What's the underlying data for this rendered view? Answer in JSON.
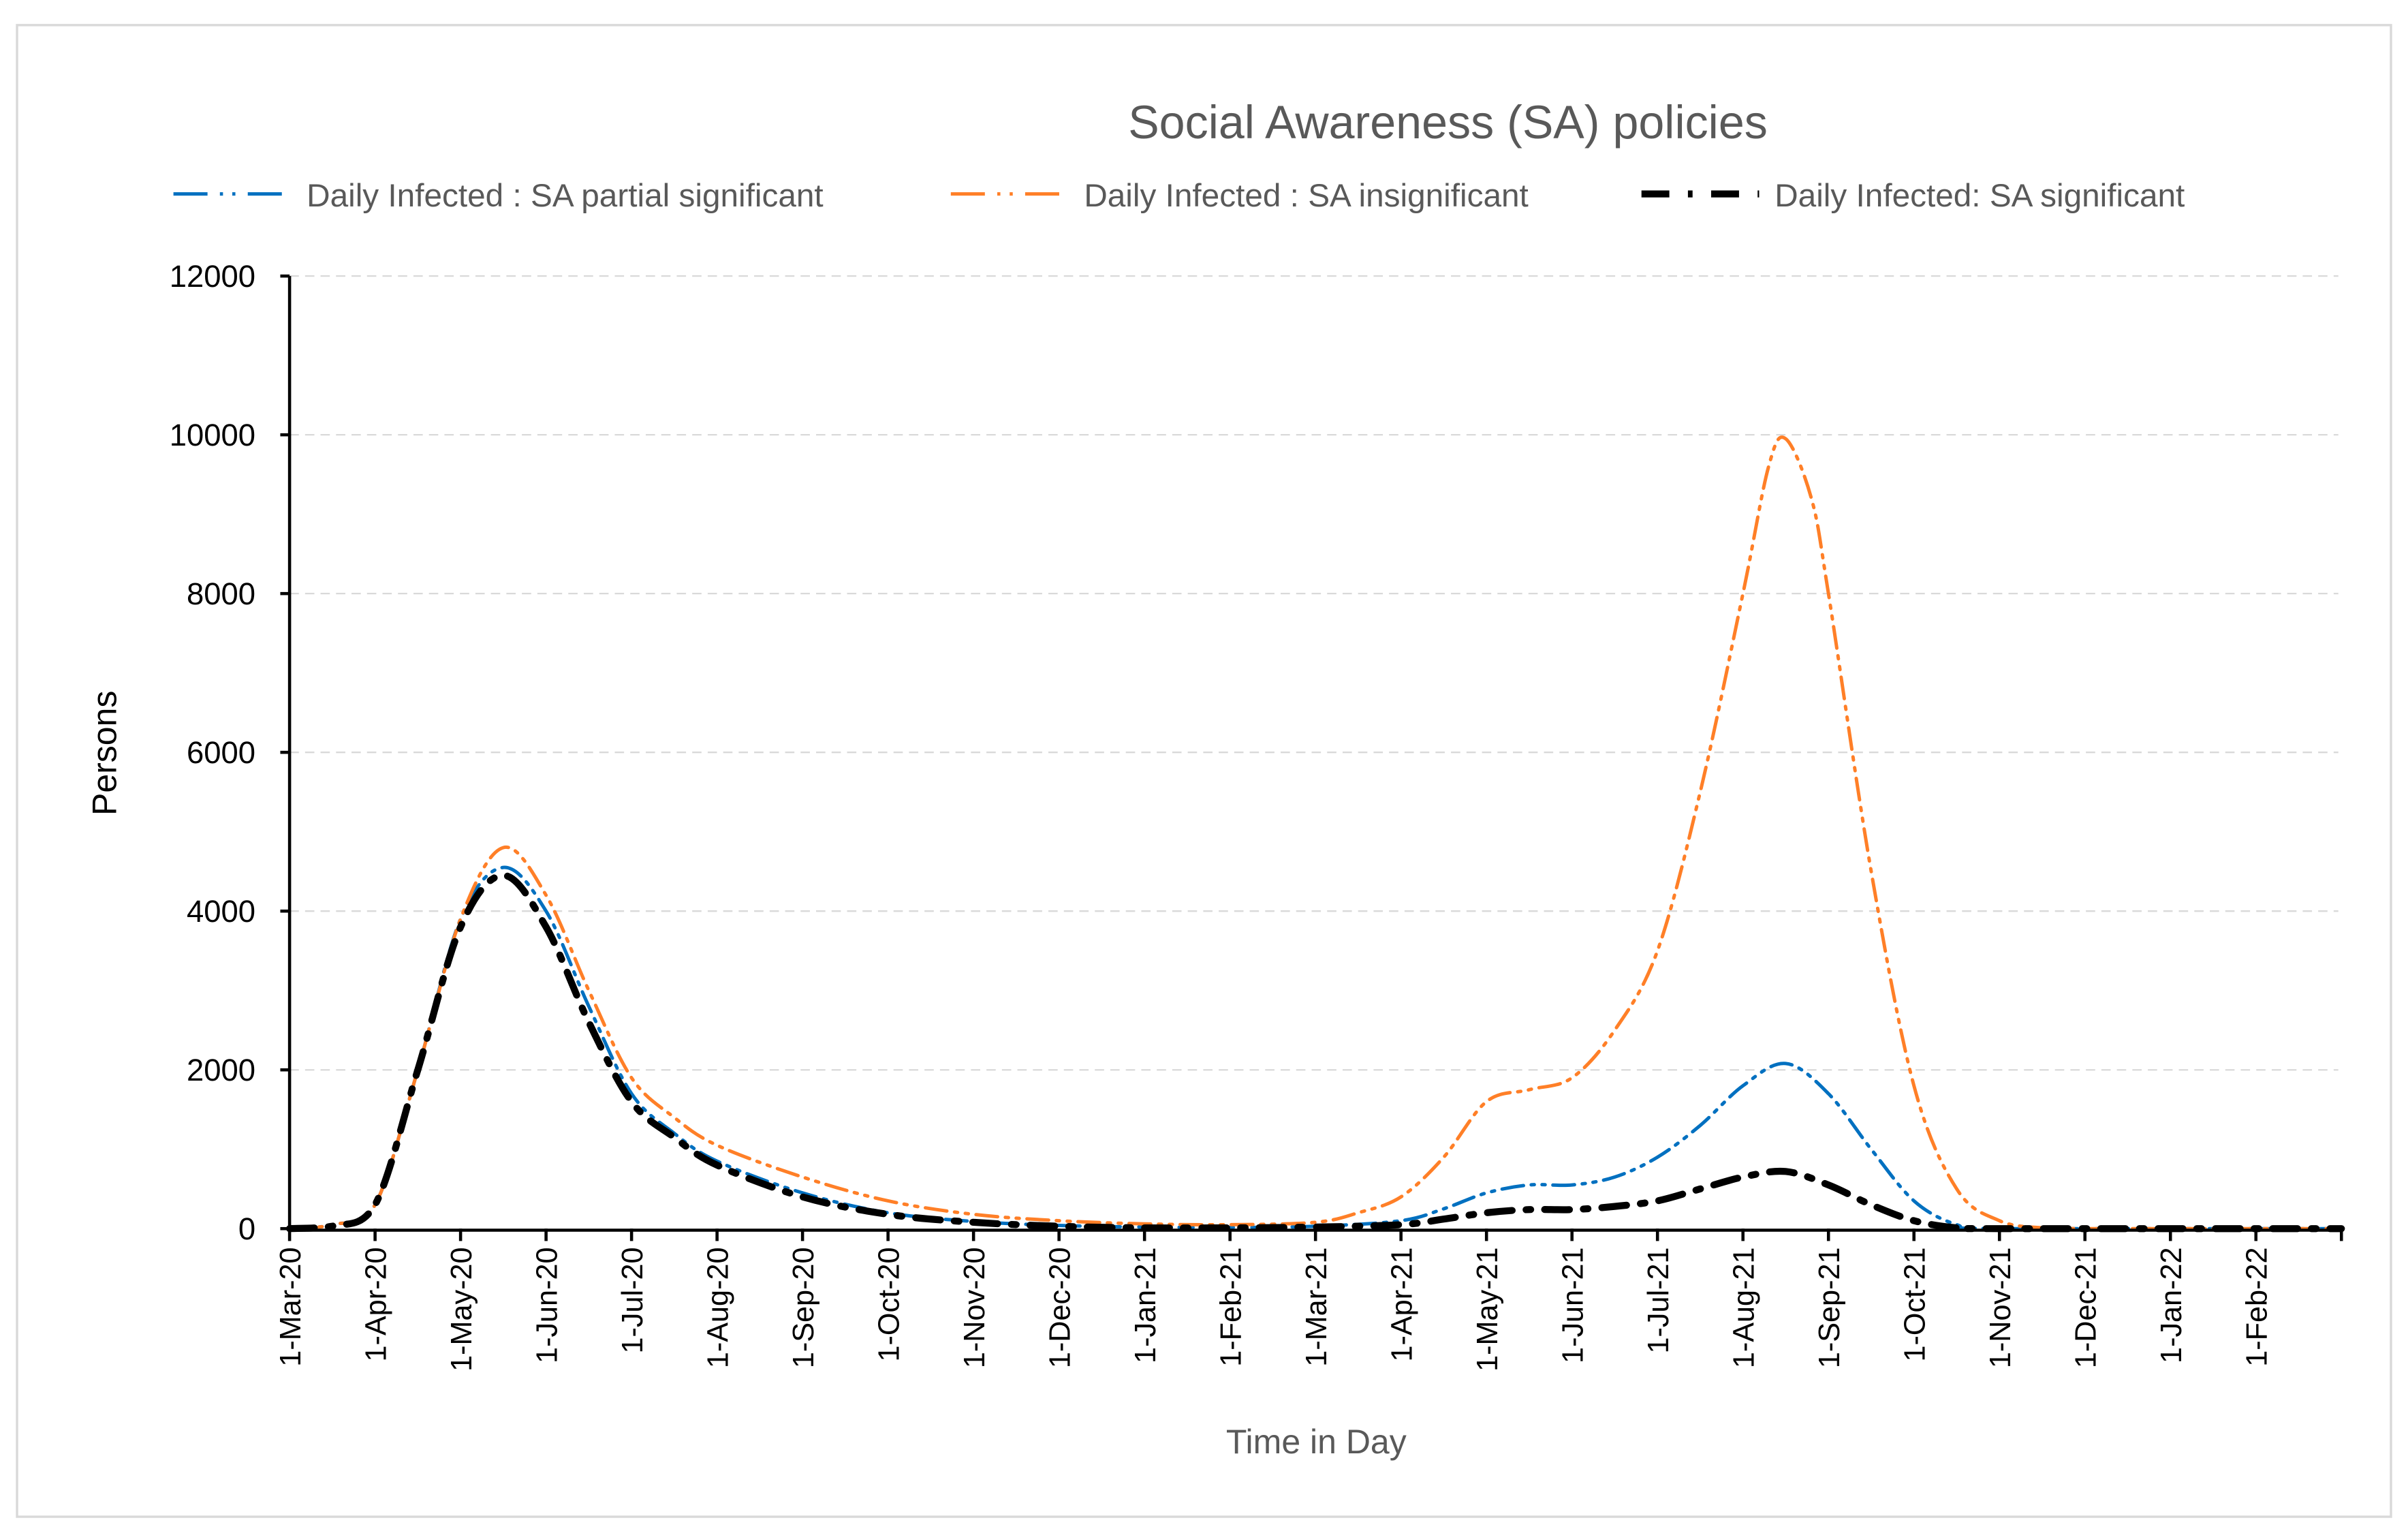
{
  "chart_data": {
    "type": "line",
    "title": "Social Awareness (SA) policies",
    "xlabel": "Time in Day",
    "ylabel": "Persons",
    "ylim": [
      0,
      12000
    ],
    "yticks": [
      0,
      2000,
      4000,
      6000,
      8000,
      10000,
      12000
    ],
    "xlim_months_since_start": [
      0,
      24
    ],
    "xtick_labels": [
      "1-Mar-20",
      "1-Apr-20",
      "1-May-20",
      "1-Jun-20",
      "1-Jul-20",
      "1-Aug-20",
      "1-Sep-20",
      "1-Oct-20",
      "1-Nov-20",
      "1-Dec-20",
      "1-Jan-21",
      "1-Feb-21",
      "1-Mar-21",
      "1-Apr-21",
      "1-May-21",
      "1-Jun-21",
      "1-Jul-21",
      "1-Aug-21",
      "1-Sep-21",
      "1-Oct-21",
      "1-Nov-21",
      "1-Dec-21",
      "1-Jan-22",
      "1-Feb-22"
    ],
    "grid": "horizontal dashed",
    "legend_position": "top",
    "series": [
      {
        "name": "Daily Infected : SA partial significant",
        "color": "#0070C0",
        "style": "dash-dot-dot",
        "x": [
          0,
          0.5,
          1,
          1.5,
          2,
          2.5,
          3,
          3.5,
          4,
          4.5,
          5,
          6,
          7,
          8,
          9,
          10,
          11,
          12,
          13,
          13.5,
          14,
          14.5,
          15,
          15.5,
          16,
          16.5,
          17,
          17.5,
          18,
          18.5,
          19,
          19.5,
          20,
          24
        ],
        "y": [
          0,
          50,
          300,
          2000,
          3900,
          4550,
          4000,
          2800,
          1700,
          1200,
          850,
          450,
          200,
          90,
          40,
          20,
          15,
          30,
          100,
          250,
          450,
          550,
          550,
          650,
          900,
          1300,
          1800,
          2080,
          1700,
          1000,
          350,
          50,
          0,
          0
        ]
      },
      {
        "name": "Daily Infected : SA insignificant",
        "color": "#FF7F27",
        "style": "dash-dot-dot",
        "x": [
          0,
          0.5,
          1,
          1.5,
          2,
          2.5,
          3,
          3.5,
          4,
          4.5,
          5,
          6,
          7,
          8,
          9,
          10,
          11,
          12,
          12.5,
          13,
          13.5,
          14,
          14.5,
          15,
          15.5,
          16,
          16.5,
          17,
          17.3,
          17.5,
          17.8,
          18,
          18.5,
          19,
          19.5,
          20,
          20.5,
          21,
          24
        ],
        "y": [
          0,
          50,
          300,
          2000,
          3900,
          4800,
          4200,
          3000,
          1900,
          1400,
          1050,
          650,
          350,
          180,
          100,
          60,
          50,
          80,
          200,
          400,
          900,
          1600,
          1750,
          1900,
          2500,
          3500,
          5500,
          8000,
          9600,
          9950,
          9200,
          8000,
          4500,
          1800,
          500,
          100,
          10,
          0,
          0
        ]
      },
      {
        "name": "Daily Infected: SA significant",
        "color": "#000000",
        "style": "long-dash-dot",
        "x": [
          0,
          0.5,
          1,
          1.5,
          2,
          2.5,
          3,
          3.5,
          4,
          4.5,
          5,
          6,
          7,
          8,
          9,
          10,
          11,
          12,
          13,
          13.5,
          14,
          14.5,
          15,
          15.5,
          16,
          16.5,
          17,
          17.5,
          18,
          18.5,
          19,
          19.5,
          20,
          24
        ],
        "y": [
          0,
          30,
          300,
          2000,
          3800,
          4450,
          3800,
          2600,
          1600,
          1150,
          800,
          400,
          180,
          80,
          30,
          10,
          10,
          20,
          50,
          120,
          200,
          240,
          240,
          280,
          350,
          500,
          650,
          720,
          550,
          300,
          100,
          10,
          0,
          0
        ]
      }
    ]
  }
}
